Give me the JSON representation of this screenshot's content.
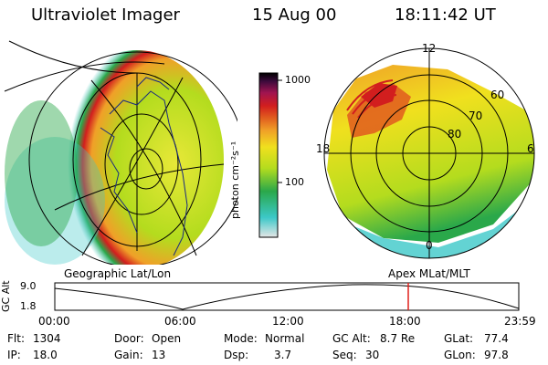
{
  "header": {
    "instrument": "Ultraviolet Imager",
    "date": "15 Aug 00",
    "time": "18:11:42 UT"
  },
  "colorbar": {
    "unit_label": "photon cm⁻²s⁻¹",
    "ticks": [
      "1000",
      "100"
    ]
  },
  "left_panel": {
    "caption": "Geographic Lat/Lon"
  },
  "right_panel": {
    "caption": "Apex MLat/MLT",
    "mlt_labels": [
      "12",
      "18",
      "6",
      "0"
    ],
    "lat_labels": [
      "60",
      "70",
      "80"
    ]
  },
  "altitude_plot": {
    "ylabel": "GC Alt",
    "yticks": [
      "9.0",
      "1.8"
    ],
    "xticks": [
      "00:00",
      "06:00",
      "12:00",
      "18:00",
      "23:59"
    ],
    "current_time_marker": "18:11"
  },
  "footer": {
    "flt": {
      "label": "Flt:",
      "value": "1304"
    },
    "ip": {
      "label": "IP:",
      "value": "18.0"
    },
    "door": {
      "label": "Door:",
      "value": "Open"
    },
    "gain": {
      "label": "Gain:",
      "value": "13"
    },
    "mode": {
      "label": "Mode:",
      "value": "Normal"
    },
    "dsp": {
      "label": "Dsp:",
      "value": "3.7"
    },
    "gcalt": {
      "label": "GC Alt:",
      "value": "8.7 Re"
    },
    "seq": {
      "label": "Seq:",
      "value": "30"
    },
    "glat": {
      "label": "GLat:",
      "value": "77.4"
    },
    "glon": {
      "label": "GLon:",
      "value": "97.8"
    }
  },
  "colors": {
    "accent_marker": "#e0201a",
    "scale": [
      "#e6e6e6",
      "#3cc8c8",
      "#2aa84a",
      "#b4dc1e",
      "#f0e01e",
      "#f0a028",
      "#e05a1e",
      "#d21e1e",
      "#a01450",
      "#3c0a3c",
      "#000000"
    ]
  }
}
